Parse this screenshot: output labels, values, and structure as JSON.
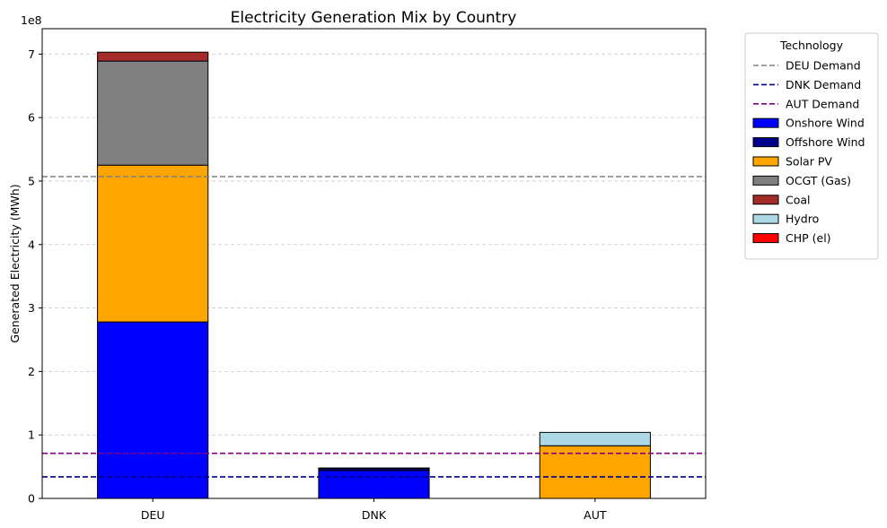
{
  "chart_data": {
    "type": "bar",
    "stacked": true,
    "title": "Electricity Generation Mix by Country",
    "xlabel": "",
    "ylabel": "Generated Electricity (MWh)",
    "y_scale_label": "1e8",
    "y_scale": 100000000,
    "ylim": [
      0,
      7.4
    ],
    "yticks": [
      0,
      1,
      2,
      3,
      4,
      5,
      6,
      7
    ],
    "grid": "y-dashed",
    "legend": {
      "title": "Technology",
      "placement": "outside-top-right"
    },
    "categories": [
      "DEU",
      "DNK",
      "AUT"
    ],
    "series": [
      {
        "name": "Onshore Wind",
        "color": "#0000ff",
        "values": [
          2.78,
          0.44,
          0.0
        ]
      },
      {
        "name": "Offshore Wind",
        "color": "#00008b",
        "values": [
          0.0,
          0.03,
          0.0
        ]
      },
      {
        "name": "Solar PV",
        "color": "#ffa500",
        "values": [
          2.47,
          0.0,
          0.83
        ]
      },
      {
        "name": "OCGT (Gas)",
        "color": "#808080",
        "values": [
          1.64,
          0.01,
          0.0
        ]
      },
      {
        "name": "Coal",
        "color": "#a52a2a",
        "values": [
          0.14,
          0.0,
          0.0
        ]
      },
      {
        "name": "Hydro",
        "color": "#add8e6",
        "values": [
          0.0,
          0.0,
          0.21
        ]
      },
      {
        "name": "CHP (el)",
        "color": "#ff0000",
        "values": [
          0.0,
          0.0,
          0.0
        ]
      }
    ],
    "demand_lines": [
      {
        "name": "DEU Demand",
        "color": "#808080",
        "value": 5.07
      },
      {
        "name": "DNK Demand",
        "color": "#00008b",
        "value": 0.34
      },
      {
        "name": "AUT Demand",
        "color": "#800080",
        "value": 0.71
      }
    ]
  }
}
